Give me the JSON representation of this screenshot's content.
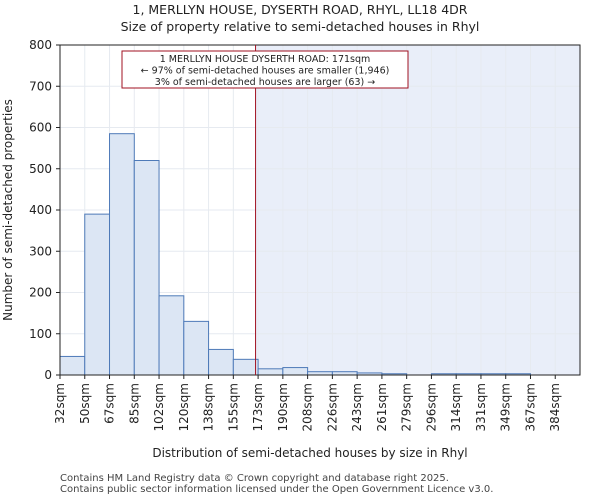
{
  "chart_data": {
    "type": "bar",
    "title_lines": [
      "1, MERLLYN HOUSE, DYSERTH ROAD, RHYL, LL18 4DR",
      "Size of property relative to semi-detached houses in Rhyl"
    ],
    "xlabel": "Distribution of semi-detached houses by size in Rhyl",
    "ylabel": "Number of semi-detached properties",
    "categories": [
      "32sqm",
      "50sqm",
      "67sqm",
      "85sqm",
      "102sqm",
      "120sqm",
      "138sqm",
      "155sqm",
      "173sqm",
      "190sqm",
      "208sqm",
      "226sqm",
      "243sqm",
      "261sqm",
      "279sqm",
      "296sqm",
      "314sqm",
      "331sqm",
      "349sqm",
      "367sqm",
      "384sqm"
    ],
    "values": [
      45,
      390,
      585,
      520,
      192,
      130,
      62,
      38,
      15,
      18,
      8,
      8,
      5,
      3,
      0,
      3,
      3,
      3,
      3,
      0,
      0
    ],
    "ylim": [
      0,
      800
    ],
    "yticks": [
      0,
      100,
      200,
      300,
      400,
      500,
      600,
      700,
      800
    ],
    "marker_value": 171,
    "highlight_from_value": 171,
    "annotation_lines": [
      "1 MERLLYN HOUSE DYSERTH ROAD: 171sqm",
      "← 97% of semi-detached houses are smaller (1,946)",
      "3% of semi-detached houses are larger (63) →"
    ],
    "colors": {
      "bar_fill": "#dce6f4",
      "bar_stroke": "#4e7ab8",
      "highlight_bg": "#e9eef9",
      "marker": "#a01020",
      "grid": "#e6eaf0"
    }
  },
  "footer": {
    "line1": "Contains HM Land Registry data © Crown copyright and database right 2025.",
    "line2": "Contains public sector information licensed under the Open Government Licence v3.0."
  }
}
